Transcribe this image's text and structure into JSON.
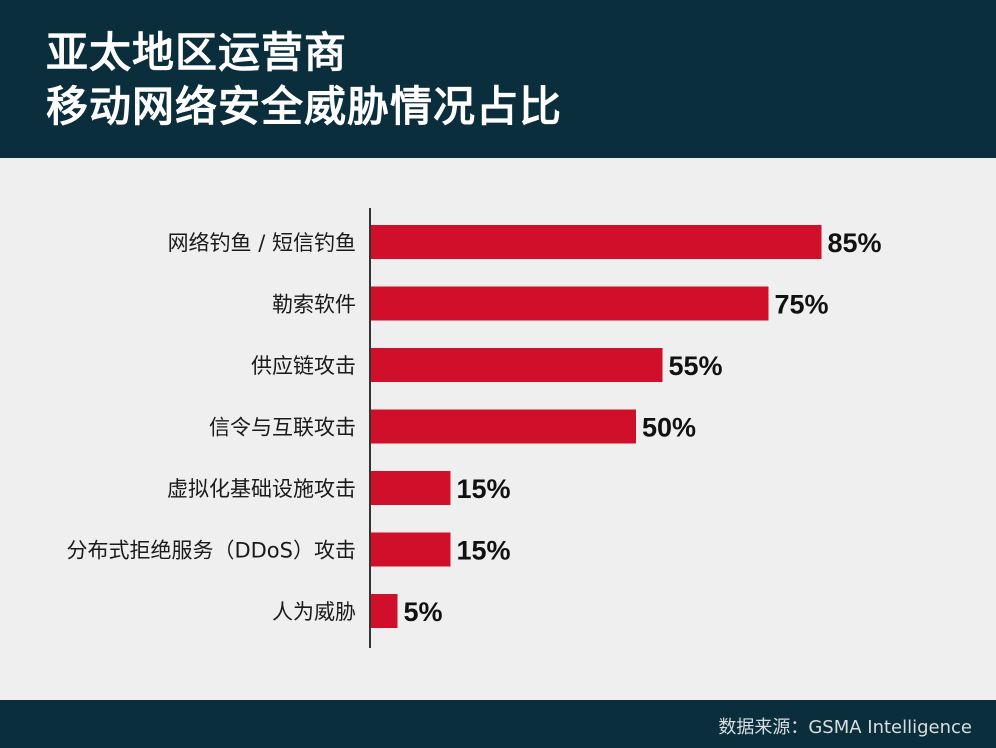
{
  "header": {
    "title_line1": "亚太地区运营商",
    "title_line2": "移动网络安全威胁情况占比"
  },
  "footer": {
    "source": "数据来源：GSMA Intelligence"
  },
  "colors": {
    "header_bg": "#0b2e3d",
    "bar": "#d0102a",
    "background": "#efefef",
    "axis": "#333333"
  },
  "chart_data": {
    "type": "bar",
    "orientation": "horizontal",
    "categories": [
      "网络钓鱼 / 短信钓鱼",
      "勒索软件",
      "供应链攻击",
      "信令与互联攻击",
      "虚拟化基础设施攻击",
      "分布式拒绝服务（DDoS）攻击",
      "人为威胁"
    ],
    "values": [
      85,
      75,
      55,
      50,
      15,
      15,
      5
    ],
    "value_labels": [
      "85%",
      "75%",
      "55%",
      "50%",
      "15%",
      "15%",
      "5%"
    ],
    "title": "亚太地区运营商 移动网络安全威胁情况占比",
    "xlabel": "",
    "ylabel": "",
    "xlim": [
      0,
      100
    ],
    "grid": false
  }
}
